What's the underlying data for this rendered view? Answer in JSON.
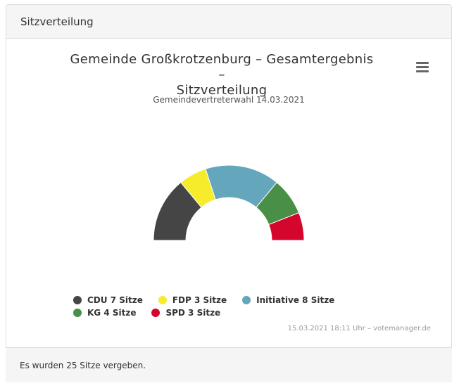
{
  "panel": {
    "heading": "Sitzverteilung",
    "footer": "Es wurden 25 Sitze vergeben."
  },
  "chart": {
    "title_line1": "Gemeinde Großkrotzenburg – Gesamtergebnis –",
    "title_line2": "Sitzverteilung",
    "subtitle": "Gemeindevertreterwahl 14.03.2021",
    "credits": "15.03.2021 18:11 Uhr – votemanager.de",
    "menu_icon": "hamburger-menu-icon"
  },
  "chart_data": {
    "type": "pie",
    "variant": "semicircle-donut",
    "title": "Gemeinde Großkrotzenburg – Gesamtergebnis – Sitzverteilung",
    "subtitle": "Gemeindevertreterwahl 14.03.2021",
    "total": 25,
    "legend_position": "bottom",
    "series": [
      {
        "name": "CDU",
        "value": 7,
        "color": "#454545",
        "legend": "CDU 7 Sitze"
      },
      {
        "name": "FDP",
        "value": 3,
        "color": "#f6ec2b",
        "legend": "FDP 3 Sitze"
      },
      {
        "name": "Initiative",
        "value": 8,
        "color": "#64a6bb",
        "legend": "Initiative 8 Sitze"
      },
      {
        "name": "KG",
        "value": 4,
        "color": "#4a8f47",
        "legend": "KG 4 Sitze"
      },
      {
        "name": "SPD",
        "value": 3,
        "color": "#d4062d",
        "legend": "SPD 3 Sitze"
      }
    ]
  }
}
